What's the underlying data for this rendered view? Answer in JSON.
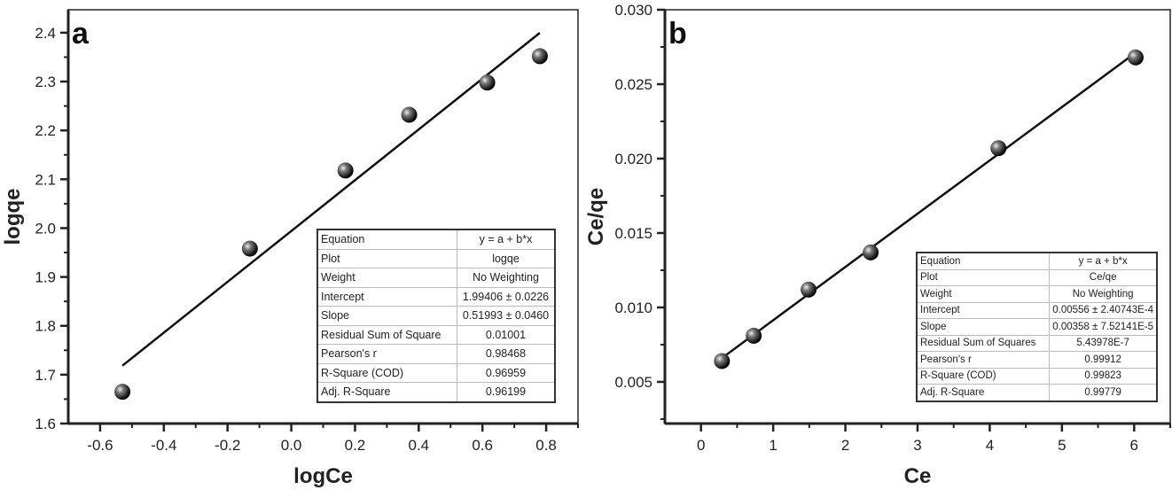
{
  "chart_data": [
    {
      "type": "scatter",
      "panel_label": "a",
      "xlabel": "logCe",
      "ylabel": "logqe",
      "xlim": [
        -0.7,
        0.9
      ],
      "ylim": [
        1.6,
        2.447
      ],
      "xticks": [
        "-0.6",
        "-0.4",
        "-0.2",
        "0.0",
        "0.2",
        "0.4",
        "0.6",
        "0.8"
      ],
      "yticks": [
        "1.6",
        "1.7",
        "1.8",
        "1.9",
        "2.0",
        "2.1",
        "2.2",
        "2.3",
        "2.4"
      ],
      "grid": false,
      "points": {
        "x": [
          -0.53,
          -0.13,
          0.17,
          0.37,
          0.615,
          0.78
        ],
        "y": [
          1.665,
          1.958,
          2.118,
          2.232,
          2.298,
          2.352
        ]
      },
      "fit": {
        "intercept": 1.99406,
        "slope": 0.51993,
        "x_range": [
          -0.53,
          0.78
        ]
      },
      "table": [
        [
          "Equation",
          "y = a + b*x"
        ],
        [
          "Plot",
          "logqe"
        ],
        [
          "Weight",
          "No Weighting"
        ],
        [
          "Intercept",
          "1.99406 ± 0.0226"
        ],
        [
          "Slope",
          "0.51993 ± 0.0460"
        ],
        [
          "Residual Sum of Square",
          "0.01001"
        ],
        [
          "Pearson's r",
          "0.98468"
        ],
        [
          "R-Square (COD)",
          "0.96959"
        ],
        [
          "Adj. R-Square",
          "0.96199"
        ]
      ]
    },
    {
      "type": "scatter",
      "panel_label": "b",
      "xlabel": "Ce",
      "ylabel": "Ce/qe",
      "xlim": [
        -0.5,
        6.5
      ],
      "ylim": [
        0.0022,
        0.03
      ],
      "xticks": [
        "0",
        "1",
        "2",
        "3",
        "4",
        "5",
        "6"
      ],
      "yticks": [
        "0.005",
        "0.010",
        "0.015",
        "0.020",
        "0.025",
        "0.030"
      ],
      "grid": false,
      "points": {
        "x": [
          0.29,
          0.73,
          1.49,
          2.35,
          4.12,
          6.02
        ],
        "y": [
          0.0064,
          0.0081,
          0.0112,
          0.0137,
          0.0207,
          0.0268
        ]
      },
      "fit": {
        "intercept": 0.00556,
        "slope": 0.00358,
        "x_range": [
          0.29,
          6.02
        ]
      },
      "table": [
        [
          "Equation",
          "y = a + b*x"
        ],
        [
          "Plot",
          "Ce/qe"
        ],
        [
          "Weight",
          "No Weighting"
        ],
        [
          "Intercept",
          "0.00556 ± 2.40743E-4"
        ],
        [
          "Slope",
          "0.00358 ± 7.52141E-5"
        ],
        [
          "Residual Sum of Squares",
          "5.43978E-7"
        ],
        [
          "Pearson's r",
          "0.99912"
        ],
        [
          "R-Square (COD)",
          "0.99823"
        ],
        [
          "Adj. R-Square",
          "0.99779"
        ]
      ]
    }
  ]
}
